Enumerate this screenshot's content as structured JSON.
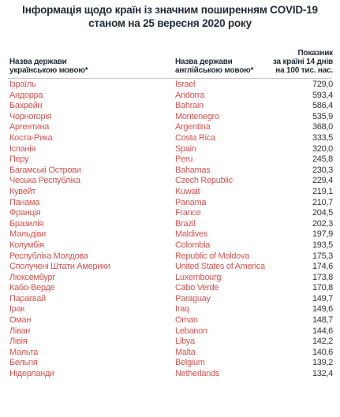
{
  "title": {
    "line1": "Інформація щодо країн із значним поширенням COVID-19",
    "line2": "станом на 25 вересня 2020 року"
  },
  "headers": {
    "ua_line1": "Назва держави",
    "ua_line2": "українською мовою*",
    "en_line1": "Назва держави",
    "en_line2": "англійською мовою*",
    "val_line1": "Показник",
    "val_line2": "за країні 14 днів",
    "val_line3": "на 100 тис. нас."
  },
  "colors": {
    "country_text": "#d9534f",
    "value_text": "#333333",
    "title_text": "#1f2a36"
  },
  "rows": [
    {
      "ua": "Ізраїль",
      "en": "Israel",
      "value": "729,0"
    },
    {
      "ua": "Андорра",
      "en": "Andorra",
      "value": "593,4"
    },
    {
      "ua": "Бахрейн",
      "en": "Bahrain",
      "value": "586,4"
    },
    {
      "ua": "Чорногорія",
      "en": "Montenegro",
      "value": "535,9"
    },
    {
      "ua": "Аргентина",
      "en": "Argentina",
      "value": "368,0"
    },
    {
      "ua": "Коста-Рика",
      "en": "Costa Rica",
      "value": "333,5"
    },
    {
      "ua": "Іспанія",
      "en": "Spain",
      "value": "320,0"
    },
    {
      "ua": "Перу",
      "en": "Peru",
      "value": "245,8"
    },
    {
      "ua": "Багамські Острови",
      "en": "Bahamas",
      "value": "230,3"
    },
    {
      "ua": "Чеська Республіка",
      "en": "Czech Republic",
      "value": "229,4"
    },
    {
      "ua": "Кувейт",
      "en": "Kuwait",
      "value": "219,1"
    },
    {
      "ua": "Панама",
      "en": "Panama",
      "value": "210,7"
    },
    {
      "ua": "Франція",
      "en": "France",
      "value": "204,5"
    },
    {
      "ua": "Бразилія",
      "en": "Brazil",
      "value": "202,3"
    },
    {
      "ua": "Мальдіви",
      "en": "Maldives",
      "value": "197,9"
    },
    {
      "ua": "Колумбія",
      "en": "Colombia",
      "value": "193,5"
    },
    {
      "ua": "Республіка Молдова",
      "en": "Republic of Moldova",
      "value": "175,3"
    },
    {
      "ua": "Сполучені Штати Америки",
      "en": "United States of America",
      "value": "174,6"
    },
    {
      "ua": "Люксембург",
      "en": "Luxembourg",
      "value": "173,8"
    },
    {
      "ua": "Кабо-Верде",
      "en": "Cabo Verde",
      "value": "170,8"
    },
    {
      "ua": "Парагвай",
      "en": "Paraguay",
      "value": "149,7"
    },
    {
      "ua": "Ірак",
      "en": "Iraq",
      "value": "149,6"
    },
    {
      "ua": "Оман",
      "en": "Oman",
      "value": "148,7"
    },
    {
      "ua": "Ліван",
      "en": "Lebanon",
      "value": "144,6"
    },
    {
      "ua": "Лівія",
      "en": "Libya",
      "value": "142,2"
    },
    {
      "ua": "Мальта",
      "en": "Malta",
      "value": "140,6"
    },
    {
      "ua": "Бельгія",
      "en": "Belgium",
      "value": "139,2"
    },
    {
      "ua": "Нідерланди",
      "en": "Netherlands",
      "value": "132,4"
    }
  ]
}
